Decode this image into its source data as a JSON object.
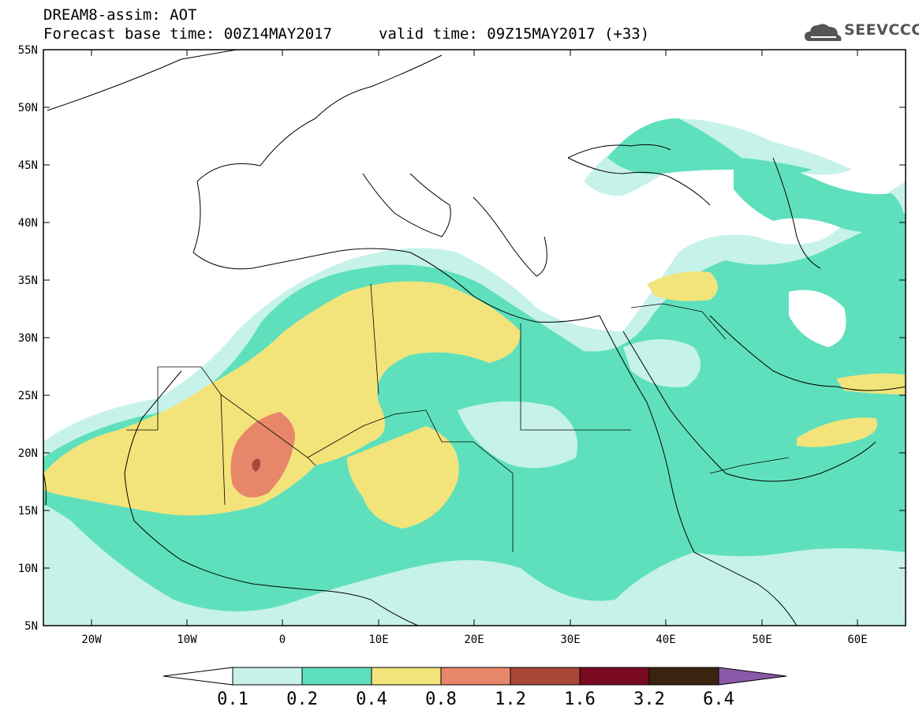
{
  "header": {
    "title": "DREAM8-assim: AOT",
    "base_time": "Forecast base time: 00Z14MAY2017",
    "valid_time": "valid time: 09Z15MAY2017 (+33)"
  },
  "logo": {
    "text": "SEEVCCC",
    "icon": "cloud-icon"
  },
  "map": {
    "lat_labels": [
      "55N",
      "50N",
      "45N",
      "40N",
      "35N",
      "30N",
      "25N",
      "20N",
      "15N",
      "10N",
      "5N"
    ],
    "lon_labels": [
      "20W",
      "10W",
      "0",
      "10E",
      "20E",
      "30E",
      "40E",
      "50E",
      "60E"
    ]
  },
  "colorbar": {
    "labels": [
      "0.1",
      "0.2",
      "0.4",
      "0.8",
      "1.2",
      "1.6",
      "3.2",
      "6.4"
    ],
    "colors": [
      "#ffffff",
      "#c6f2ea",
      "#5ee0bd",
      "#f2e47a",
      "#e8866a",
      "#a8483a",
      "#7a0a22",
      "#3a2410",
      "#8a5aa8"
    ]
  },
  "colors": {
    "light": "#c6f2ea",
    "teal": "#5ee0bd",
    "yellow": "#f2e47a",
    "orange": "#e8866a",
    "brown": "#a8483a"
  }
}
